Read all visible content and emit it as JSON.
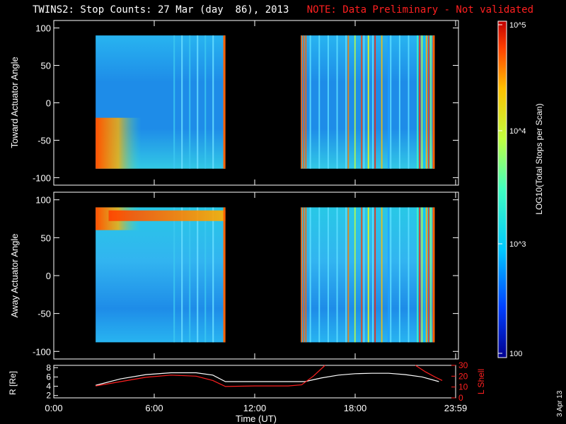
{
  "header": {
    "title": "TWINS2: Stop Counts: 27 Mar (day  86), 2013",
    "note": "NOTE: Data Preliminary - Not validated",
    "note_color": "#ff2020"
  },
  "footer_stamp": "3 Apr 13",
  "chart_data": [
    {
      "type": "heatmap",
      "ylabel": "Toward Actuator Angle",
      "ylim": [
        -110,
        110
      ],
      "yticks": [
        100,
        50,
        0,
        -50,
        -100
      ],
      "xlim": [
        0,
        24
      ],
      "data_intervals_hours": [
        [
          2.5,
          10.25
        ],
        [
          14.75,
          22.75
        ]
      ],
      "angle_range": [
        -88,
        90
      ],
      "colorbar": "log10",
      "notes": "blue background (~10^2.5-10^3) with orange/red at low angles near 3:00 and multicolor striping after 16:30"
    },
    {
      "type": "heatmap",
      "ylabel": "Away Actuator Angle",
      "ylim": [
        -110,
        110
      ],
      "yticks": [
        100,
        50,
        0,
        -50,
        -100
      ],
      "xlim": [
        0,
        24
      ],
      "data_intervals_hours": [
        [
          2.5,
          10.25
        ],
        [
          14.75,
          22.75
        ]
      ],
      "angle_range": [
        -88,
        90
      ],
      "colorbar": "log10",
      "notes": "orange band near +80 deg from 3:00 to 10:00, striping after 16:30"
    },
    {
      "type": "line",
      "ylabel_left": "R [Re]",
      "ylabel_right": "L Shell",
      "ylabel_right_color": "#ff2020",
      "xlabel": "Time (UT)",
      "x_ticks": [
        "0:00",
        "6:00",
        "12:00",
        "18:00",
        "23:59"
      ],
      "y_left_ticks": [
        2,
        4,
        6,
        8
      ],
      "y_left_lim": [
        1.5,
        8.5
      ],
      "y_right_ticks": [
        0,
        10,
        20,
        30
      ],
      "y_right_lim": [
        0,
        30
      ],
      "series": [
        {
          "color": "#ffffff",
          "axis": "left",
          "x": [
            2.5,
            4,
            5.5,
            7,
            8.5,
            9.5,
            10.25,
            12,
            14,
            15,
            16,
            17,
            18,
            19,
            20,
            21,
            22,
            23
          ],
          "y": [
            4.2,
            5.6,
            6.5,
            6.9,
            6.9,
            6.4,
            5.0,
            5.0,
            5.0,
            5.0,
            5.8,
            6.4,
            6.7,
            6.8,
            6.8,
            6.5,
            6.0,
            5.0
          ]
        },
        {
          "color": "#ff2020",
          "axis": "right",
          "x": [
            2.5,
            4,
            5.5,
            7,
            8.5,
            9.5,
            10.25,
            12,
            14,
            14.8,
            15.5,
            16.2
          ],
          "y": [
            11,
            15,
            19,
            21,
            20,
            16,
            10.5,
            11,
            11,
            12,
            20,
            30
          ],
          "x2": [
            21.6,
            22.2,
            22.8,
            23.2
          ],
          "y2": [
            30,
            24,
            19,
            16
          ]
        }
      ]
    }
  ],
  "colorbar": {
    "label": "LOG10(Total Stops per Scan)",
    "ticks": [
      "10^5",
      "10^4",
      "10^3",
      "100"
    ]
  }
}
